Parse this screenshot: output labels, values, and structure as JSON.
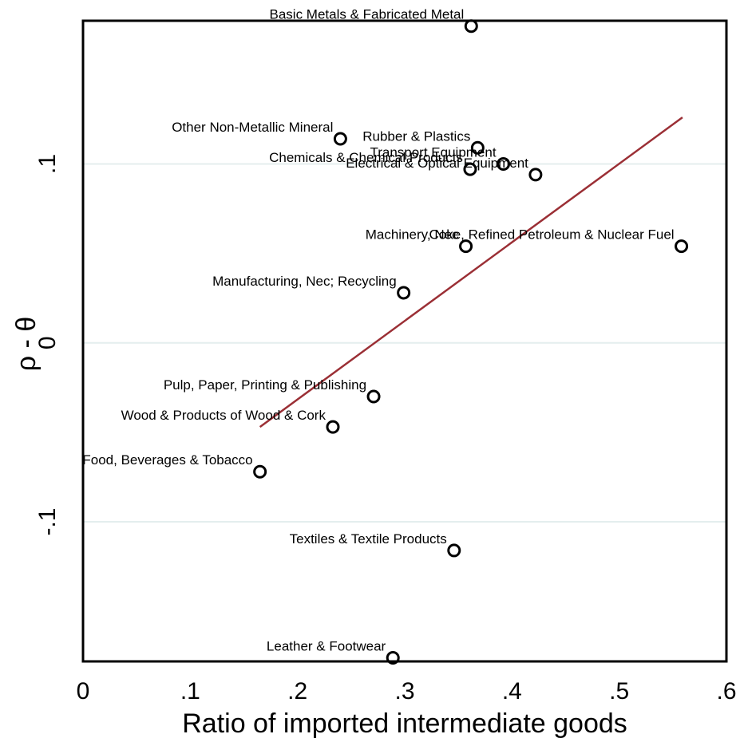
{
  "chart_data": {
    "type": "scatter",
    "title": "",
    "xlabel": "Ratio of imported intermediate goods",
    "ylabel": "ρ - θ",
    "xlim": [
      0,
      0.6
    ],
    "ylim": [
      -0.178,
      0.18
    ],
    "xticks": [
      0,
      0.1,
      0.2,
      0.3,
      0.4,
      0.5,
      0.6
    ],
    "xtick_labels": [
      "0",
      ".1",
      ".2",
      ".3",
      ".4",
      ".5",
      ".6"
    ],
    "yticks": [
      -0.1,
      0,
      0.1
    ],
    "ytick_labels": [
      "-.1",
      "0",
      ".1"
    ],
    "grid": "horizontal",
    "legend": "none",
    "colors": {
      "marker": "#000000",
      "fit_line": "#9b2f35",
      "grid": "#e4eeee"
    },
    "fit_line": {
      "x": [
        0.165,
        0.559
      ],
      "y": [
        -0.047,
        0.126
      ]
    },
    "points": [
      {
        "label": "Basic Metals & Fabricated Metal",
        "x": 0.362,
        "y": 0.177
      },
      {
        "label": "Other Non-Metallic Mineral",
        "x": 0.24,
        "y": 0.114
      },
      {
        "label": "Rubber & Plastics",
        "x": 0.368,
        "y": 0.109
      },
      {
        "label": "Transport Equipment",
        "x": 0.392,
        "y": 0.1
      },
      {
        "label": "Chemicals & Chemical Products",
        "x": 0.361,
        "y": 0.097
      },
      {
        "label": "Electrical & Optical Equipment",
        "x": 0.422,
        "y": 0.094
      },
      {
        "label": "Machinery, Nec",
        "x": 0.357,
        "y": 0.054
      },
      {
        "label": "Coke, Refined Petroleum & Nuclear Fuel",
        "x": 0.558,
        "y": 0.054
      },
      {
        "label": "Manufacturing, Nec; Recycling",
        "x": 0.299,
        "y": 0.028
      },
      {
        "label": "Pulp, Paper, Printing & Publishing",
        "x": 0.271,
        "y": -0.03
      },
      {
        "label": "Wood & Products of Wood & Cork",
        "x": 0.233,
        "y": -0.047
      },
      {
        "label": "Food, Beverages & Tobacco",
        "x": 0.165,
        "y": -0.072
      },
      {
        "label": "Textiles & Textile Products",
        "x": 0.346,
        "y": -0.116
      },
      {
        "label": "Leather & Footwear",
        "x": 0.289,
        "y": -0.176
      }
    ]
  }
}
